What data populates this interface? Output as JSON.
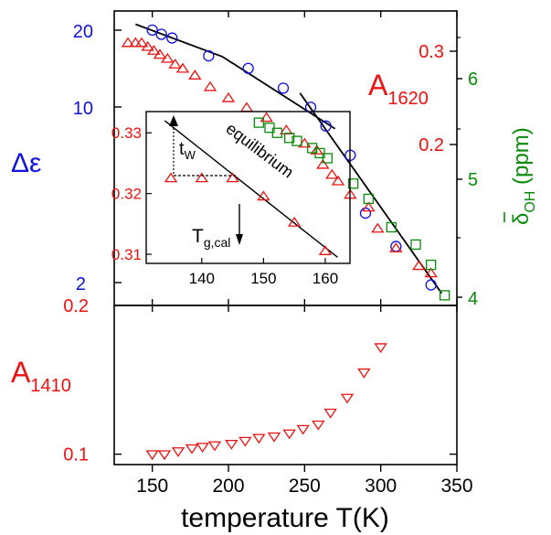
{
  "colors": {
    "blue": "#1010e0",
    "red": "#ee1111",
    "green": "#0a8a0a",
    "black": "#000000"
  },
  "xlabel": "temperature T(K)",
  "chart_data": [
    {
      "id": "upper",
      "type": "scatter",
      "left_axis": {
        "label": "Δε",
        "scale": "log",
        "range": [
          1.8,
          23
        ],
        "ticks": [
          "2",
          "10",
          "20"
        ],
        "color": "#1010e0"
      },
      "inner_axis": {
        "label": "A",
        "label_sub": "1620",
        "scale": "log",
        "range": [
          0.12,
          0.38
        ],
        "ticks": [
          "0.2",
          "0.3"
        ],
        "color": "#ee1111"
      },
      "right_axis": {
        "label": "δ",
        "label_sub": "OH",
        "label_suffix": " (ppm)",
        "range": [
          4.0,
          6.9
        ],
        "ticks": [
          "4",
          "5",
          "6"
        ],
        "color": "#0a8a0a"
      },
      "series": [
        {
          "marker": "circle",
          "color": "#1010e0",
          "axis": "left",
          "points": [
            [
              150,
              19.5
            ],
            [
              156,
              18.8
            ],
            [
              163,
              18.2
            ],
            [
              187,
              15.6
            ],
            [
              213,
              14.0
            ],
            [
              236,
              11.8
            ],
            [
              254,
              10.0
            ],
            [
              264,
              8.5
            ],
            [
              280,
              6.6
            ],
            [
              290,
              4.0
            ],
            [
              310,
              3.0
            ],
            [
              333,
              2.15
            ]
          ]
        },
        {
          "marker": "triangle-up",
          "color": "#ee1111",
          "axis": "inner",
          "points": [
            [
              134,
              0.335
            ],
            [
              139,
              0.335
            ],
            [
              143,
              0.335
            ],
            [
              147,
              0.33
            ],
            [
              151,
              0.325
            ],
            [
              155,
              0.32
            ],
            [
              160,
              0.315
            ],
            [
              165,
              0.308
            ],
            [
              170,
              0.303
            ],
            [
              178,
              0.295
            ],
            [
              188,
              0.282
            ],
            [
              200,
              0.27
            ],
            [
              212,
              0.26
            ],
            [
              225,
              0.25
            ],
            [
              238,
              0.238
            ],
            [
              250,
              0.226
            ],
            [
              258,
              0.22
            ],
            [
              262,
              0.208
            ],
            [
              268,
              0.2
            ],
            [
              272,
              0.195
            ],
            [
              280,
              0.185
            ],
            [
              292,
              0.176
            ],
            [
              298,
              0.162
            ],
            [
              310,
              0.15
            ],
            [
              325,
              0.14
            ],
            [
              333,
              0.136
            ]
          ]
        },
        {
          "marker": "square",
          "color": "#0a8a0a",
          "axis": "right",
          "points": [
            [
              220,
              5.8
            ],
            [
              227,
              5.75
            ],
            [
              232,
              5.7
            ],
            [
              240,
              5.65
            ],
            [
              245,
              5.62
            ],
            [
              255,
              5.55
            ],
            [
              260,
              5.5
            ],
            [
              265,
              5.45
            ],
            [
              282,
              5.2
            ],
            [
              292,
              5.05
            ],
            [
              307,
              4.77
            ],
            [
              323,
              4.6
            ],
            [
              333,
              4.4
            ],
            [
              342,
              4.1
            ]
          ]
        }
      ],
      "fit_lines": [
        {
          "axis": "left",
          "points": [
            [
              139,
              20.5
            ],
            [
              196,
              15.5
            ],
            [
              270,
              8.3
            ]
          ]
        },
        {
          "axis": "left",
          "points": [
            [
              247,
              11.3
            ],
            [
              340,
              2.0
            ]
          ]
        }
      ],
      "inset": {
        "type": "scatter",
        "xlim": [
          131,
          164
        ],
        "ylim": [
          0.3085,
          0.3335
        ],
        "xticks": [
          "140",
          "150",
          "160"
        ],
        "yticks": [
          "0.31",
          "0.32",
          "0.33"
        ],
        "points": [
          [
            135,
            0.3225
          ],
          [
            140,
            0.3225
          ],
          [
            145,
            0.3225
          ],
          [
            150,
            0.3195
          ],
          [
            155,
            0.3152
          ],
          [
            160,
            0.3105
          ]
        ],
        "equilibrium_line": [
          [
            134,
            0.332
          ],
          [
            162,
            0.3095
          ]
        ],
        "equilibrium_label": "equilibrium",
        "tw_label": "t",
        "tw_sub": "W",
        "tg_label": "T",
        "tg_sub": "g,cal"
      }
    },
    {
      "id": "lower",
      "type": "scatter",
      "ylabel": "A",
      "ylabel_sub": "1410",
      "ylim": [
        0.093,
        0.2
      ],
      "yticks": [
        "0.1",
        "0.2"
      ],
      "xlim": [
        125,
        350
      ],
      "xticks": [
        "150",
        "200",
        "250",
        "300",
        "350"
      ],
      "xlabel": "temperature T(K)",
      "series": [
        {
          "marker": "triangle-down",
          "color": "#ee1111",
          "points": [
            [
              150,
              0.1
            ],
            [
              158,
              0.1
            ],
            [
              167,
              0.102
            ],
            [
              176,
              0.104
            ],
            [
              183,
              0.105
            ],
            [
              191,
              0.106
            ],
            [
              202,
              0.107
            ],
            [
              211,
              0.109
            ],
            [
              220,
              0.111
            ],
            [
              230,
              0.112
            ],
            [
              240,
              0.114
            ],
            [
              249,
              0.117
            ],
            [
              259,
              0.12
            ],
            [
              267,
              0.128
            ],
            [
              278,
              0.138
            ],
            [
              289,
              0.155
            ],
            [
              300,
              0.172
            ]
          ]
        }
      ]
    }
  ]
}
